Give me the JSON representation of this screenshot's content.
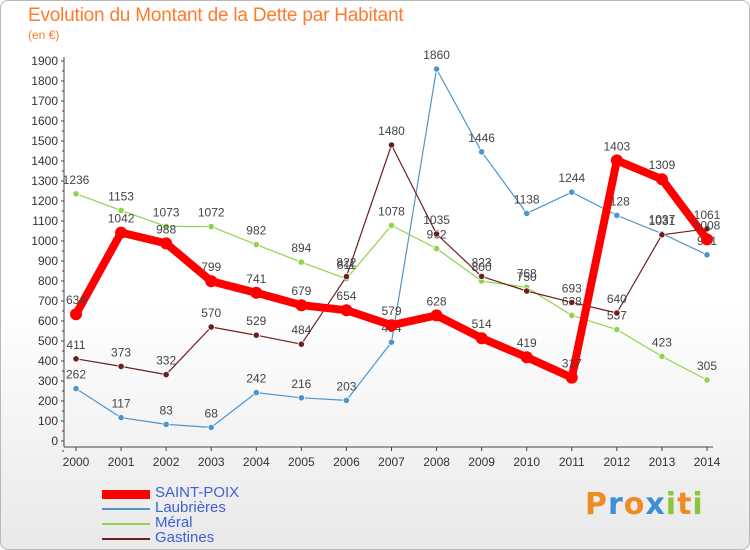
{
  "chart_data": {
    "type": "line",
    "title": "Evolution du Montant de la Dette par Habitant",
    "subtitle": "(en €)",
    "xlabel": "",
    "ylabel": "",
    "ylim": [
      0,
      1900
    ],
    "yticks": [
      0,
      100,
      200,
      300,
      400,
      500,
      600,
      700,
      800,
      900,
      1000,
      1100,
      1200,
      1300,
      1400,
      1500,
      1600,
      1700,
      1800,
      1900
    ],
    "categories": [
      "2000",
      "2001",
      "2002",
      "2003",
      "2004",
      "2005",
      "2006",
      "2007",
      "2008",
      "2009",
      "2010",
      "2011",
      "2012",
      "2013",
      "2014"
    ],
    "grid": false,
    "legend_position": "bottom-left",
    "series": [
      {
        "name": "Laubrières",
        "color": "#4f95cc",
        "values": [
          262,
          117,
          83,
          68,
          242,
          216,
          203,
          494,
          1860,
          1446,
          1138,
          1244,
          1128,
          1037,
          931
        ]
      },
      {
        "name": "Méral",
        "color": "#8fd44c",
        "values": [
          1236,
          1153,
          1073,
          1072,
          982,
          894,
          811,
          1078,
          962,
          800,
          768,
          628,
          557,
          423,
          305
        ]
      },
      {
        "name": "Gastines",
        "color": "#6b1f1f",
        "values": [
          411,
          373,
          332,
          570,
          529,
          484,
          822,
          1480,
          1035,
          823,
          750,
          693,
          640,
          1031,
          1061
        ]
      },
      {
        "name": "SAINT-POIX",
        "color": "#ff0000",
        "values": [
          634,
          1042,
          988,
          799,
          741,
          679,
          654,
          579,
          628,
          514,
          419,
          317,
          1403,
          1309,
          1008
        ]
      }
    ]
  },
  "legend": [
    {
      "name": "SAINT-POIX",
      "color": "#ff0000"
    },
    {
      "name": "Laubrières",
      "color": "#4f95cc"
    },
    {
      "name": "Méral",
      "color": "#8fd44c"
    },
    {
      "name": "Gastines",
      "color": "#6b1f1f"
    }
  ],
  "brand": {
    "letters": [
      "P",
      "r",
      "o",
      "x",
      "i",
      "t",
      "i"
    ],
    "colors": [
      "#f08a24",
      "#3a8fd8",
      "#f08a24",
      "#3a8fd8",
      "#8cc43c",
      "#f08a24",
      "#8cc43c"
    ]
  }
}
